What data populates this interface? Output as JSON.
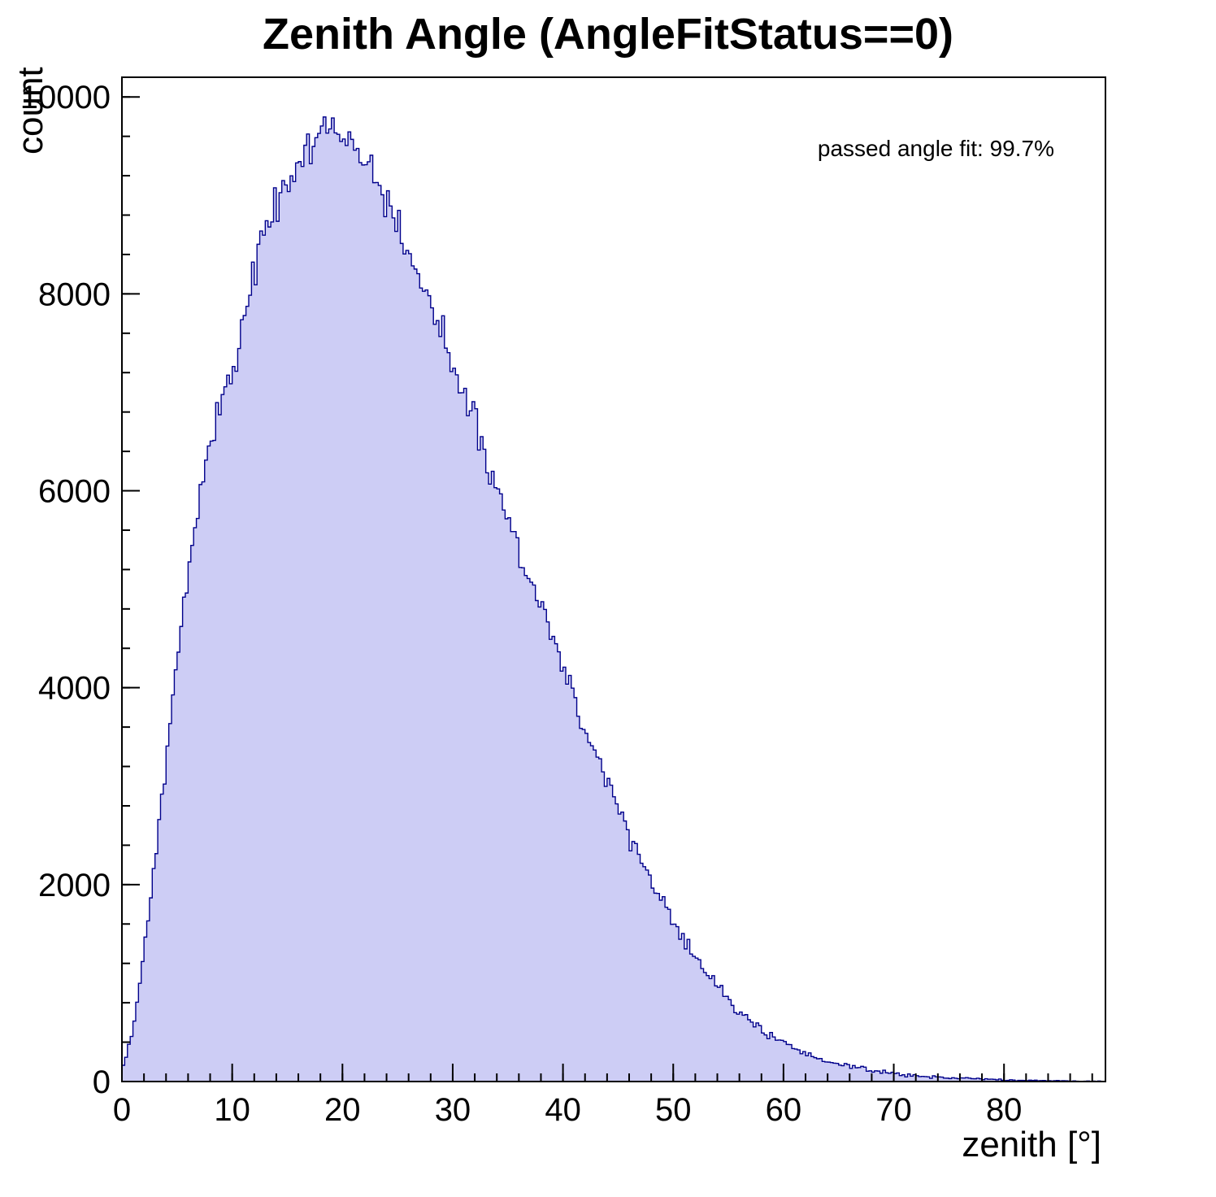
{
  "title": "Zenith Angle (AngleFitStatus==0)",
  "annotation": "passed angle fit: 99.7%",
  "axes": {
    "x": {
      "label": "zenith [°]",
      "min": 0,
      "max": 89.2,
      "major_ticks": [
        0,
        10,
        20,
        30,
        40,
        50,
        60,
        70,
        80
      ],
      "minor_step": 2
    },
    "y": {
      "label": "count",
      "min": 0,
      "max": 10200,
      "major_ticks": [
        0,
        2000,
        4000,
        6000,
        8000,
        10000
      ],
      "minor_step": 400
    }
  },
  "colors": {
    "fill": "#cdcdf5",
    "line": "#00008b",
    "frame": "#000000",
    "text": "#000000"
  },
  "chart_data": {
    "type": "bar",
    "subtype": "histogram",
    "title": "Zenith Angle (AngleFitStatus==0)",
    "xlabel": "zenith [°]",
    "ylabel": "count",
    "xlim": [
      0,
      89.2
    ],
    "ylim": [
      0,
      10200
    ],
    "legend": "none",
    "grid": false,
    "bin_width_deg": 1,
    "x": [
      0,
      1,
      2,
      3,
      4,
      5,
      6,
      7,
      8,
      9,
      10,
      11,
      12,
      13,
      14,
      15,
      16,
      17,
      18,
      19,
      20,
      21,
      22,
      23,
      24,
      25,
      26,
      27,
      28,
      29,
      30,
      31,
      32,
      33,
      34,
      35,
      36,
      37,
      38,
      39,
      40,
      41,
      42,
      43,
      44,
      45,
      46,
      47,
      48,
      49,
      50,
      51,
      52,
      53,
      54,
      55,
      56,
      57,
      58,
      59,
      60,
      61,
      62,
      63,
      64,
      65,
      66,
      67,
      68,
      69,
      70,
      71,
      72,
      73,
      74,
      75,
      76,
      77,
      78,
      79,
      80,
      81,
      82,
      83,
      84,
      85,
      86,
      87,
      88
    ],
    "counts": [
      100,
      520,
      1350,
      2250,
      3250,
      4250,
      5150,
      5900,
      6500,
      6950,
      7250,
      7650,
      8200,
      8600,
      8950,
      9150,
      9350,
      9500,
      9650,
      9570,
      9520,
      9480,
      9400,
      9200,
      8950,
      8700,
      8400,
      8150,
      7900,
      7650,
      7250,
      6950,
      6650,
      6300,
      6000,
      5700,
      5400,
      5100,
      4800,
      4500,
      4200,
      3900,
      3600,
      3300,
      3050,
      2780,
      2520,
      2280,
      2050,
      1830,
      1620,
      1430,
      1260,
      1110,
      960,
      830,
      710,
      610,
      520,
      450,
      390,
      330,
      285,
      240,
      205,
      175,
      150,
      130,
      110,
      95,
      82,
      70,
      60,
      52,
      45,
      40,
      34,
      30,
      26,
      22,
      18,
      15,
      12,
      10,
      8,
      7,
      5,
      4,
      3
    ]
  }
}
